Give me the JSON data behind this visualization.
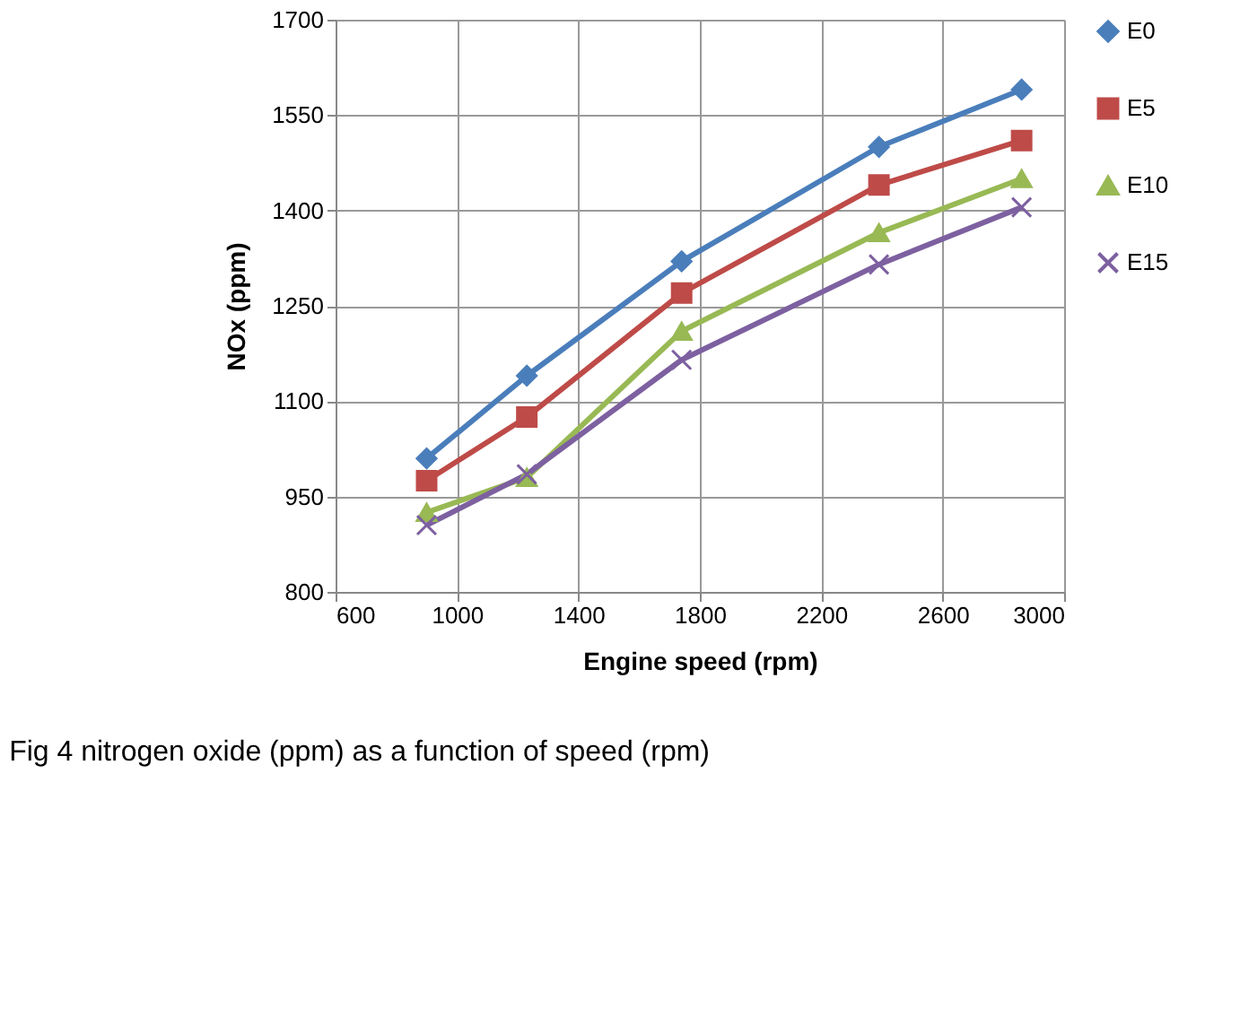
{
  "chart_data": {
    "type": "line",
    "xlabel": "Engine speed (rpm)",
    "ylabel": "NOx (ppm)",
    "x": [
      900,
      1230,
      1740,
      2390,
      2860
    ],
    "series": [
      {
        "name": "E0",
        "color": "#4a7ebb",
        "marker": "diamond",
        "values": [
          1010,
          1140,
          1320,
          1500,
          1590
        ]
      },
      {
        "name": "E5",
        "color": "#be4b48",
        "marker": "square",
        "values": [
          975,
          1075,
          1270,
          1440,
          1510
        ]
      },
      {
        "name": "E10",
        "color": "#98b954",
        "marker": "triangle",
        "values": [
          925,
          980,
          1210,
          1365,
          1450
        ]
      },
      {
        "name": "E15",
        "color": "#7d60a0",
        "marker": "cross",
        "values": [
          905,
          985,
          1165,
          1315,
          1405
        ]
      }
    ],
    "xlim": [
      600,
      3000
    ],
    "xticks": [
      600,
      1000,
      1400,
      1800,
      2200,
      2600,
      3000
    ],
    "ylim": [
      800,
      1700
    ],
    "yticks": [
      800,
      950,
      1100,
      1250,
      1400,
      1550,
      1700
    ],
    "grid": true,
    "legend": "right",
    "line_style": "solid",
    "annotations": [
      "Fig 4 nitrogen oxide (ppm) as a function of speed (rpm)"
    ]
  }
}
